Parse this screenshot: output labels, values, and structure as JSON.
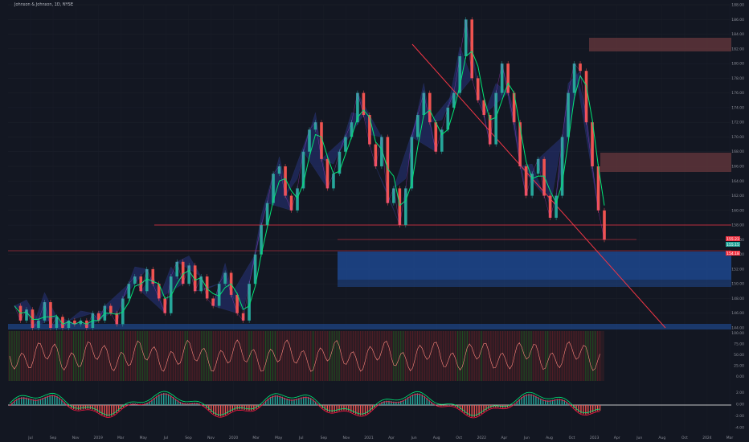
{
  "header": {
    "symbol": "Johnson & Johnson, 1D, NYSE"
  },
  "colors": {
    "background": "#131722",
    "up": "#26a69a",
    "down": "#ef5350",
    "neon_green": "#00e676",
    "red_line": "#f23645",
    "blue_zone": "#1f4e9c",
    "pink_zone": "#6d3a3f",
    "blue_wedge": "#2a3a8f",
    "text": "#8c8f99"
  },
  "price_tags": {
    "current": "155.23",
    "prev": "155.15",
    "low": "154.18"
  },
  "chart_data": [
    {
      "type": "line",
      "title": "",
      "y_ticks": [
        "188.00",
        "186.00",
        "184.00",
        "182.00",
        "180.00",
        "178.00",
        "176.00",
        "174.00",
        "172.00",
        "170.00",
        "168.00",
        "166.00",
        "164.00",
        "162.00",
        "160.00",
        "158.00",
        "156.00",
        "154.00",
        "152.00",
        "150.00",
        "148.00",
        "146.00",
        "144.00"
      ],
      "ylim": [
        144,
        188
      ],
      "x_ticks": [
        "Jul",
        "Sep",
        "Nov",
        "2019",
        "Mar",
        "May",
        "Jul",
        "Sep",
        "Nov",
        "2020",
        "Mar",
        "May",
        "Jul",
        "Sep",
        "Nov",
        "2021",
        "Apr",
        "Jun",
        "Aug",
        "Oct",
        "2022",
        "Apr",
        "Jun",
        "Aug",
        "Oct",
        "2023",
        "Apr",
        "Jun",
        "Aug",
        "Oct",
        "2024",
        "Mar"
      ],
      "series": [
        {
          "values": [
            147.0,
            145.0,
            146.5,
            144.0,
            145.0,
            147.5,
            144.0,
            145.5,
            144.0,
            145.0,
            144.5,
            145.0,
            144.0,
            146.0,
            145.0,
            147.0,
            146.0,
            144.5,
            148.0,
            150.0,
            151.0,
            149.0,
            152.0,
            150.0,
            148.0,
            146.0,
            151.0,
            153.0,
            150.0,
            152.5,
            149.0,
            151.0,
            148.0,
            147.0,
            150.0,
            151.5,
            148.5,
            146.0,
            145.0,
            150.0,
            154.0,
            158.0,
            161.0,
            165.0,
            166.0,
            162.0,
            160.0,
            163.0,
            168.0,
            171.0,
            172.0,
            167.0,
            163.0,
            165.0,
            168.0,
            170.0,
            172.0,
            176.0,
            173.0,
            169.0,
            166.0,
            170.0,
            161.0,
            163.0,
            158.0,
            163.0,
            170.0,
            173.0,
            176.0,
            172.0,
            168.0,
            171.0,
            174.0,
            176.0,
            181.0,
            186.0,
            178.0,
            175.0,
            173.0,
            169.0,
            176.0,
            180.0,
            176.0,
            172.0,
            166.0,
            162.0,
            165.0,
            167.0,
            162.0,
            159.0,
            162.0,
            170.0,
            176.0,
            180.0,
            179.0,
            172.0,
            166.0,
            160.0,
            156.0
          ]
        }
      ]
    },
    {
      "type": "line",
      "title": "",
      "y_ticks": [
        "100.00",
        "75.00",
        "50.00",
        "25.00",
        "0.00"
      ],
      "ylim": [
        -100,
        100
      ]
    },
    {
      "type": "line",
      "title": "",
      "y_ticks": [
        "2.00",
        "0.00",
        "-2.00",
        "-4.00"
      ],
      "ylim": [
        -4,
        4
      ]
    }
  ]
}
